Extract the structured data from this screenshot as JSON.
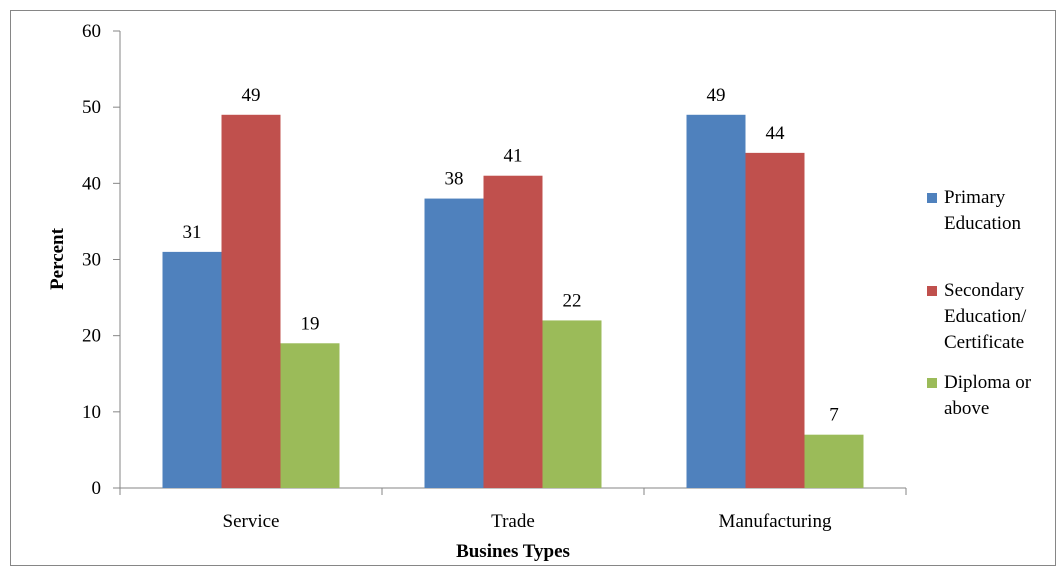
{
  "chart_data": {
    "type": "bar",
    "xlabel": "Busines Types",
    "ylabel": "Percent",
    "categories": [
      "Service",
      "Trade",
      "Manufacturing"
    ],
    "ylim": [
      0,
      60
    ],
    "yticks": [
      "0",
      "10",
      "20",
      "30",
      "40",
      "50",
      "60"
    ],
    "grid": false,
    "legend_position": "right",
    "series": [
      {
        "name": "Primary Education",
        "legend_lines": [
          "Primary",
          "Education"
        ],
        "color": "#4F81BD",
        "values": [
          31,
          38,
          49
        ]
      },
      {
        "name": "Secondary Education/ Certificate",
        "legend_lines": [
          "Secondary",
          "Education/",
          "Certificate"
        ],
        "color": "#C0504D",
        "values": [
          49,
          41,
          44
        ]
      },
      {
        "name": "Diploma or above",
        "legend_lines": [
          "Diploma or",
          "above"
        ],
        "color": "#9BBB59",
        "values": [
          19,
          22,
          7
        ]
      }
    ],
    "data_labels": [
      [
        "31",
        "38",
        "49"
      ],
      [
        "49",
        "41",
        "44"
      ],
      [
        "19",
        "22",
        "7"
      ]
    ]
  }
}
